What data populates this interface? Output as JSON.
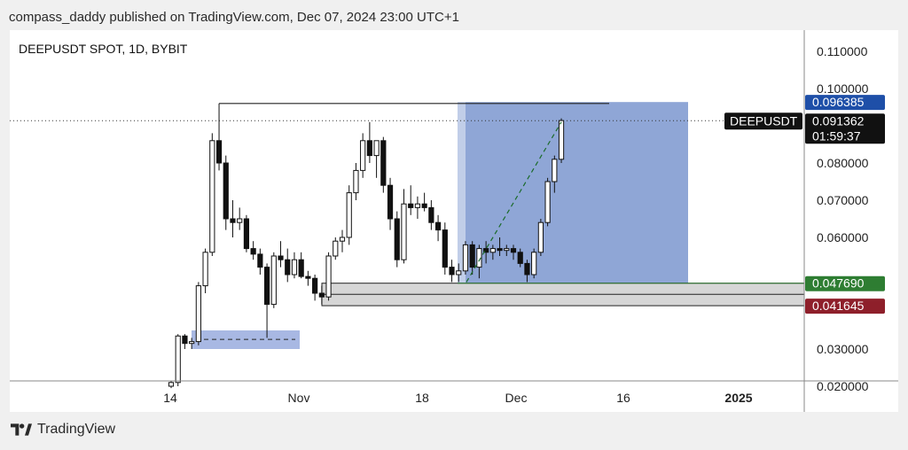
{
  "header": {
    "published_text": "compass_daddy published on TradingView.com, Dec 07, 2024 23:00 UTC+1"
  },
  "footer": {
    "brand": "TradingView",
    "logo_icon": "tradingview-logo-icon"
  },
  "chart_data": {
    "type": "candlestick",
    "title": "DEEPUSDT SPOT, 1D, BYBIT",
    "symbol": "DEEPUSDT",
    "x_tick_labels": [
      "14",
      "Nov",
      "18",
      "Dec",
      "16",
      "2025"
    ],
    "y_tick_labels": [
      "0.110000",
      "0.100000",
      "0.080000",
      "0.070000",
      "0.060000",
      "0.030000",
      "0.020000"
    ],
    "ylim": [
      0.0185,
      0.112
    ],
    "last_price": "0.091362",
    "countdown": "01:59:37",
    "target_label": "0.096385",
    "entry_label": "0.047690",
    "stop_label": "0.041645",
    "colors": {
      "profit_zone": "#7b96cf",
      "loss_zone": "#b07f87",
      "target_badge": "#1e4fa8",
      "entry_badge": "#2e7d32",
      "stop_badge": "#8e1f2a",
      "price_badge": "#111111"
    },
    "candles": [
      {
        "d": "Oct 11",
        "o": 0.02,
        "h": 0.0215,
        "l": 0.0195,
        "c": 0.021
      },
      {
        "d": "Oct 12",
        "o": 0.021,
        "h": 0.034,
        "l": 0.02,
        "c": 0.0335
      },
      {
        "d": "Oct 13",
        "o": 0.0335,
        "h": 0.034,
        "l": 0.03,
        "c": 0.0315
      },
      {
        "d": "Oct 14",
        "o": 0.0315,
        "h": 0.033,
        "l": 0.03,
        "c": 0.032
      },
      {
        "d": "Oct 15",
        "o": 0.032,
        "h": 0.048,
        "l": 0.031,
        "c": 0.047
      },
      {
        "d": "Oct 16",
        "o": 0.047,
        "h": 0.057,
        "l": 0.045,
        "c": 0.056
      },
      {
        "d": "Oct 17",
        "o": 0.056,
        "h": 0.088,
        "l": 0.055,
        "c": 0.086
      },
      {
        "d": "Oct 18",
        "o": 0.086,
        "h": 0.096,
        "l": 0.078,
        "c": 0.08
      },
      {
        "d": "Oct 19",
        "o": 0.08,
        "h": 0.082,
        "l": 0.062,
        "c": 0.065
      },
      {
        "d": "Oct 20",
        "o": 0.065,
        "h": 0.07,
        "l": 0.06,
        "c": 0.064
      },
      {
        "d": "Oct 21",
        "o": 0.064,
        "h": 0.068,
        "l": 0.062,
        "c": 0.065
      },
      {
        "d": "Oct 22",
        "o": 0.065,
        "h": 0.066,
        "l": 0.056,
        "c": 0.057
      },
      {
        "d": "Oct 23",
        "o": 0.057,
        "h": 0.059,
        "l": 0.054,
        "c": 0.0555
      },
      {
        "d": "Oct 24",
        "o": 0.0555,
        "h": 0.057,
        "l": 0.05,
        "c": 0.052
      },
      {
        "d": "Oct 25",
        "o": 0.052,
        "h": 0.053,
        "l": 0.033,
        "c": 0.042
      },
      {
        "d": "Oct 26",
        "o": 0.042,
        "h": 0.056,
        "l": 0.041,
        "c": 0.055
      },
      {
        "d": "Oct 27",
        "o": 0.055,
        "h": 0.059,
        "l": 0.052,
        "c": 0.054
      },
      {
        "d": "Oct 28",
        "o": 0.054,
        "h": 0.057,
        "l": 0.048,
        "c": 0.05
      },
      {
        "d": "Oct 29",
        "o": 0.05,
        "h": 0.056,
        "l": 0.049,
        "c": 0.054
      },
      {
        "d": "Oct 30",
        "o": 0.054,
        "h": 0.056,
        "l": 0.049,
        "c": 0.0495
      },
      {
        "d": "Oct 31",
        "o": 0.0495,
        "h": 0.051,
        "l": 0.047,
        "c": 0.049
      },
      {
        "d": "Nov 01",
        "o": 0.049,
        "h": 0.05,
        "l": 0.043,
        "c": 0.045
      },
      {
        "d": "Nov 02",
        "o": 0.045,
        "h": 0.047,
        "l": 0.042,
        "c": 0.044
      },
      {
        "d": "Nov 03",
        "o": 0.044,
        "h": 0.056,
        "l": 0.043,
        "c": 0.055
      },
      {
        "d": "Nov 04",
        "o": 0.055,
        "h": 0.06,
        "l": 0.054,
        "c": 0.059
      },
      {
        "d": "Nov 05",
        "o": 0.059,
        "h": 0.062,
        "l": 0.056,
        "c": 0.06
      },
      {
        "d": "Nov 06",
        "o": 0.06,
        "h": 0.074,
        "l": 0.058,
        "c": 0.072
      },
      {
        "d": "Nov 07",
        "o": 0.072,
        "h": 0.08,
        "l": 0.07,
        "c": 0.078
      },
      {
        "d": "Nov 08",
        "o": 0.078,
        "h": 0.088,
        "l": 0.076,
        "c": 0.086
      },
      {
        "d": "Nov 09",
        "o": 0.086,
        "h": 0.091,
        "l": 0.08,
        "c": 0.082
      },
      {
        "d": "Nov 10",
        "o": 0.082,
        "h": 0.086,
        "l": 0.076,
        "c": 0.086
      },
      {
        "d": "Nov 11",
        "o": 0.086,
        "h": 0.087,
        "l": 0.072,
        "c": 0.074
      },
      {
        "d": "Nov 12",
        "o": 0.074,
        "h": 0.076,
        "l": 0.062,
        "c": 0.065
      },
      {
        "d": "Nov 13",
        "o": 0.065,
        "h": 0.067,
        "l": 0.052,
        "c": 0.054
      },
      {
        "d": "Nov 14",
        "o": 0.054,
        "h": 0.073,
        "l": 0.053,
        "c": 0.069
      },
      {
        "d": "Nov 15",
        "o": 0.069,
        "h": 0.074,
        "l": 0.066,
        "c": 0.068
      },
      {
        "d": "Nov 16",
        "o": 0.068,
        "h": 0.071,
        "l": 0.065,
        "c": 0.069
      },
      {
        "d": "Nov 17",
        "o": 0.069,
        "h": 0.072,
        "l": 0.067,
        "c": 0.068
      },
      {
        "d": "Nov 18",
        "o": 0.068,
        "h": 0.07,
        "l": 0.062,
        "c": 0.064
      },
      {
        "d": "Nov 19",
        "o": 0.064,
        "h": 0.066,
        "l": 0.059,
        "c": 0.062
      },
      {
        "d": "Nov 20",
        "o": 0.062,
        "h": 0.064,
        "l": 0.05,
        "c": 0.052
      },
      {
        "d": "Nov 21",
        "o": 0.052,
        "h": 0.054,
        "l": 0.048,
        "c": 0.05
      },
      {
        "d": "Nov 22",
        "o": 0.05,
        "h": 0.053,
        "l": 0.048,
        "c": 0.051
      },
      {
        "d": "Nov 23",
        "o": 0.051,
        "h": 0.059,
        "l": 0.05,
        "c": 0.058
      },
      {
        "d": "Nov 24",
        "o": 0.058,
        "h": 0.059,
        "l": 0.05,
        "c": 0.052
      },
      {
        "d": "Nov 25",
        "o": 0.052,
        "h": 0.058,
        "l": 0.049,
        "c": 0.057
      },
      {
        "d": "Nov 26",
        "o": 0.057,
        "h": 0.059,
        "l": 0.053,
        "c": 0.056
      },
      {
        "d": "Nov 27",
        "o": 0.056,
        "h": 0.058,
        "l": 0.054,
        "c": 0.057
      },
      {
        "d": "Nov 28",
        "o": 0.057,
        "h": 0.06,
        "l": 0.055,
        "c": 0.0565
      },
      {
        "d": "Nov 29",
        "o": 0.0565,
        "h": 0.058,
        "l": 0.055,
        "c": 0.057
      },
      {
        "d": "Nov 30",
        "o": 0.057,
        "h": 0.058,
        "l": 0.054,
        "c": 0.056
      },
      {
        "d": "Dec 01",
        "o": 0.056,
        "h": 0.057,
        "l": 0.052,
        "c": 0.053
      },
      {
        "d": "Dec 02",
        "o": 0.053,
        "h": 0.054,
        "l": 0.048,
        "c": 0.05
      },
      {
        "d": "Dec 03",
        "o": 0.05,
        "h": 0.057,
        "l": 0.049,
        "c": 0.056
      },
      {
        "d": "Dec 04",
        "o": 0.056,
        "h": 0.065,
        "l": 0.055,
        "c": 0.064
      },
      {
        "d": "Dec 05",
        "o": 0.064,
        "h": 0.076,
        "l": 0.063,
        "c": 0.075
      },
      {
        "d": "Dec 06",
        "o": 0.075,
        "h": 0.082,
        "l": 0.072,
        "c": 0.081
      },
      {
        "d": "Dec 07",
        "o": 0.081,
        "h": 0.092,
        "l": 0.08,
        "c": 0.0914
      }
    ]
  }
}
